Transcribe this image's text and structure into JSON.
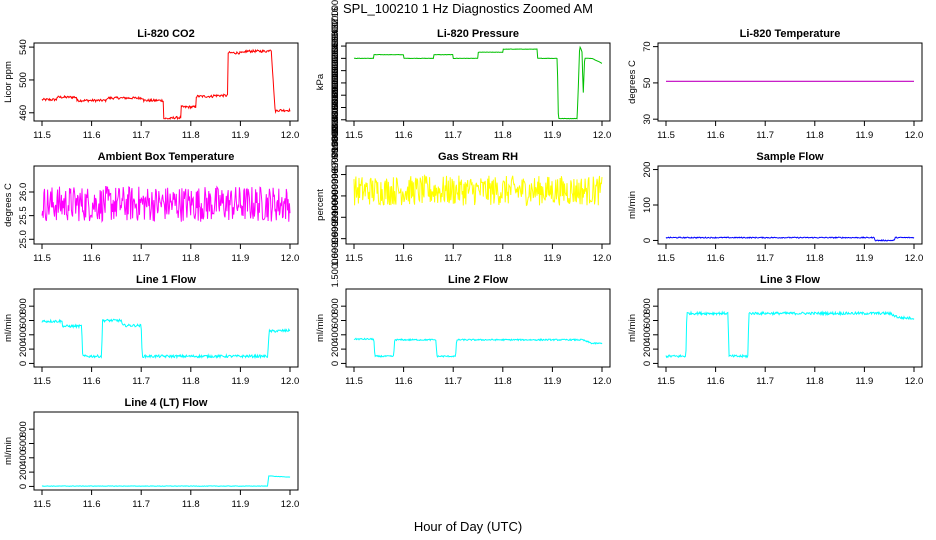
{
  "title": "SPL_100210  1 Hz Diagnostics Zoomed AM",
  "xlabel": "Hour of Day (UTC)",
  "colors": {
    "red": "#ff0000",
    "green": "#00c000",
    "magenta_line": "#c000c0",
    "magenta": "#ff00ff",
    "yellow": "#ffff00",
    "blue": "#0000ff",
    "cyan": "#00ffff"
  },
  "chart_data": [
    {
      "type": "line",
      "title": "Li-820 CO2",
      "ylabel": "Licor ppm",
      "color": "red",
      "noise": 1.5,
      "xlim": [
        11.5,
        12.0
      ],
      "ylim": [
        450,
        545
      ],
      "xticks": [
        11.5,
        11.6,
        11.7,
        11.8,
        11.9,
        12.0
      ],
      "yticks": [
        460,
        500,
        540
      ],
      "points": [
        [
          11.5,
          476
        ],
        [
          11.53,
          476
        ],
        [
          11.53,
          479
        ],
        [
          11.57,
          479
        ],
        [
          11.57,
          475
        ],
        [
          11.63,
          475
        ],
        [
          11.63,
          478
        ],
        [
          11.705,
          478
        ],
        [
          11.705,
          475
        ],
        [
          11.745,
          475
        ],
        [
          11.745,
          453
        ],
        [
          11.76,
          453
        ],
        [
          11.765,
          454
        ],
        [
          11.78,
          454
        ],
        [
          11.78,
          467
        ],
        [
          11.81,
          467
        ],
        [
          11.81,
          480
        ],
        [
          11.845,
          480
        ],
        [
          11.845,
          481
        ],
        [
          11.875,
          481
        ],
        [
          11.875,
          533
        ],
        [
          11.91,
          533
        ],
        [
          11.91,
          535
        ],
        [
          11.955,
          535
        ],
        [
          11.962,
          538
        ],
        [
          11.97,
          462
        ],
        [
          11.975,
          463
        ],
        [
          12.0,
          463
        ]
      ]
    },
    {
      "type": "line",
      "title": "Li-820 Pressure",
      "ylabel": "kPa",
      "color": "green",
      "noise": 0.003,
      "xlim": [
        11.5,
        12.0
      ],
      "ylim": [
        67.78,
        69.05
      ],
      "xticks": [
        11.5,
        11.6,
        11.7,
        11.8,
        11.9,
        12.0
      ],
      "yticks": [
        67.8,
        68.0,
        68.2,
        68.4,
        68.6,
        68.8,
        69.0
      ],
      "points": [
        [
          11.5,
          68.8
        ],
        [
          11.54,
          68.8
        ],
        [
          11.54,
          68.86
        ],
        [
          11.6,
          68.86
        ],
        [
          11.6,
          68.8
        ],
        [
          11.66,
          68.8
        ],
        [
          11.66,
          68.86
        ],
        [
          11.7,
          68.86
        ],
        [
          11.7,
          68.8
        ],
        [
          11.75,
          68.8
        ],
        [
          11.75,
          68.9
        ],
        [
          11.8,
          68.9
        ],
        [
          11.8,
          68.95
        ],
        [
          11.87,
          68.95
        ],
        [
          11.87,
          68.8
        ],
        [
          11.91,
          68.8
        ],
        [
          11.912,
          67.82
        ],
        [
          11.95,
          67.82
        ],
        [
          11.955,
          69.0
        ],
        [
          11.96,
          68.9
        ],
        [
          11.962,
          68.2
        ],
        [
          11.965,
          68.8
        ],
        [
          11.98,
          68.8
        ],
        [
          12.0,
          68.72
        ]
      ]
    },
    {
      "type": "line",
      "title": "Li-820 Temperature",
      "ylabel": "degrees C",
      "color": "magenta_line",
      "noise": 0,
      "xlim": [
        11.5,
        12.0
      ],
      "ylim": [
        29,
        72
      ],
      "xticks": [
        11.5,
        11.6,
        11.7,
        11.8,
        11.9,
        12.0
      ],
      "yticks": [
        30,
        50,
        70
      ],
      "points": [
        [
          11.5,
          50.9
        ],
        [
          12.0,
          50.9
        ]
      ]
    },
    {
      "type": "line",
      "title": "Ambient Box Temperature",
      "ylabel": "degrees C",
      "color": "magenta",
      "noise": 0.38,
      "xlim": [
        11.5,
        12.0
      ],
      "ylim": [
        24.9,
        26.55
      ],
      "xticks": [
        11.5,
        11.6,
        11.7,
        11.8,
        11.9,
        12.0
      ],
      "yticks": [
        25.0,
        25.5,
        26.0
      ],
      "points": [
        [
          11.5,
          25.75
        ],
        [
          12.0,
          25.75
        ]
      ]
    },
    {
      "type": "line",
      "title": "Gas Stream RH",
      "ylabel": "percent",
      "color": "yellow",
      "noise": 0.14,
      "xlim": [
        11.5,
        12.0
      ],
      "ylim": [
        1.45,
        2.18
      ],
      "xticks": [
        11.5,
        11.6,
        11.7,
        11.8,
        11.9,
        12.0
      ],
      "yticks": [
        1.5,
        1.7,
        1.9,
        2.1
      ],
      "points": [
        [
          11.5,
          1.95
        ],
        [
          12.0,
          1.95
        ]
      ]
    },
    {
      "type": "line",
      "title": "Sample Flow",
      "ylabel": "ml/min",
      "color": "blue",
      "noise": 1.5,
      "xlim": [
        11.5,
        12.0
      ],
      "ylim": [
        -10,
        210
      ],
      "xticks": [
        11.5,
        11.6,
        11.7,
        11.8,
        11.9,
        12.0
      ],
      "yticks": [
        0,
        100,
        200
      ],
      "points": [
        [
          11.5,
          8
        ],
        [
          11.92,
          8
        ],
        [
          11.922,
          0
        ],
        [
          11.96,
          0
        ],
        [
          11.962,
          8
        ],
        [
          12.0,
          8
        ]
      ]
    },
    {
      "type": "line",
      "title": "Line 1 Flow",
      "ylabel": "ml/min",
      "color": "cyan",
      "noise": 18,
      "xlim": [
        11.5,
        12.0
      ],
      "ylim": [
        -50,
        1040
      ],
      "xticks": [
        11.5,
        11.6,
        11.7,
        11.8,
        11.9,
        12.0
      ],
      "yticks": [
        0,
        200,
        400,
        600,
        800
      ],
      "points": [
        [
          11.5,
          590
        ],
        [
          11.54,
          590
        ],
        [
          11.542,
          520
        ],
        [
          11.58,
          520
        ],
        [
          11.582,
          100
        ],
        [
          11.62,
          100
        ],
        [
          11.622,
          600
        ],
        [
          11.66,
          600
        ],
        [
          11.662,
          530
        ],
        [
          11.7,
          530
        ],
        [
          11.702,
          100
        ],
        [
          11.955,
          100
        ],
        [
          11.958,
          450
        ],
        [
          12.0,
          460
        ]
      ]
    },
    {
      "type": "line",
      "title": "Line 2 Flow",
      "ylabel": "ml/min",
      "color": "cyan",
      "noise": 10,
      "xlim": [
        11.5,
        12.0
      ],
      "ylim": [
        -50,
        1040
      ],
      "xticks": [
        11.5,
        11.6,
        11.7,
        11.8,
        11.9,
        12.0
      ],
      "yticks": [
        0,
        200,
        400,
        600,
        800
      ],
      "points": [
        [
          11.5,
          340
        ],
        [
          11.54,
          340
        ],
        [
          11.542,
          100
        ],
        [
          11.58,
          100
        ],
        [
          11.582,
          330
        ],
        [
          11.665,
          330
        ],
        [
          11.667,
          100
        ],
        [
          11.705,
          100
        ],
        [
          11.707,
          330
        ],
        [
          11.96,
          330
        ],
        [
          11.98,
          280
        ],
        [
          12.0,
          280
        ]
      ]
    },
    {
      "type": "line",
      "title": "Line 3 Flow",
      "ylabel": "ml/min",
      "color": "cyan",
      "noise": 18,
      "xlim": [
        11.5,
        12.0
      ],
      "ylim": [
        -50,
        1040
      ],
      "xticks": [
        11.5,
        11.6,
        11.7,
        11.8,
        11.9,
        12.0
      ],
      "yticks": [
        0,
        200,
        400,
        600,
        800
      ],
      "points": [
        [
          11.5,
          100
        ],
        [
          11.54,
          100
        ],
        [
          11.542,
          700
        ],
        [
          11.625,
          700
        ],
        [
          11.627,
          100
        ],
        [
          11.665,
          100
        ],
        [
          11.667,
          700
        ],
        [
          11.95,
          700
        ],
        [
          11.97,
          640
        ],
        [
          12.0,
          630
        ]
      ]
    },
    {
      "type": "line",
      "title": "Line 4 (LT) Flow",
      "ylabel": "ml/min",
      "color": "cyan",
      "noise": 3,
      "xlim": [
        11.5,
        12.0
      ],
      "ylim": [
        -50,
        1040
      ],
      "xticks": [
        11.5,
        11.6,
        11.7,
        11.8,
        11.9,
        12.0
      ],
      "yticks": [
        0,
        200,
        400,
        600,
        800
      ],
      "points": [
        [
          11.5,
          5
        ],
        [
          11.955,
          5
        ],
        [
          11.957,
          150
        ],
        [
          11.97,
          140
        ],
        [
          12.0,
          130
        ]
      ]
    }
  ]
}
